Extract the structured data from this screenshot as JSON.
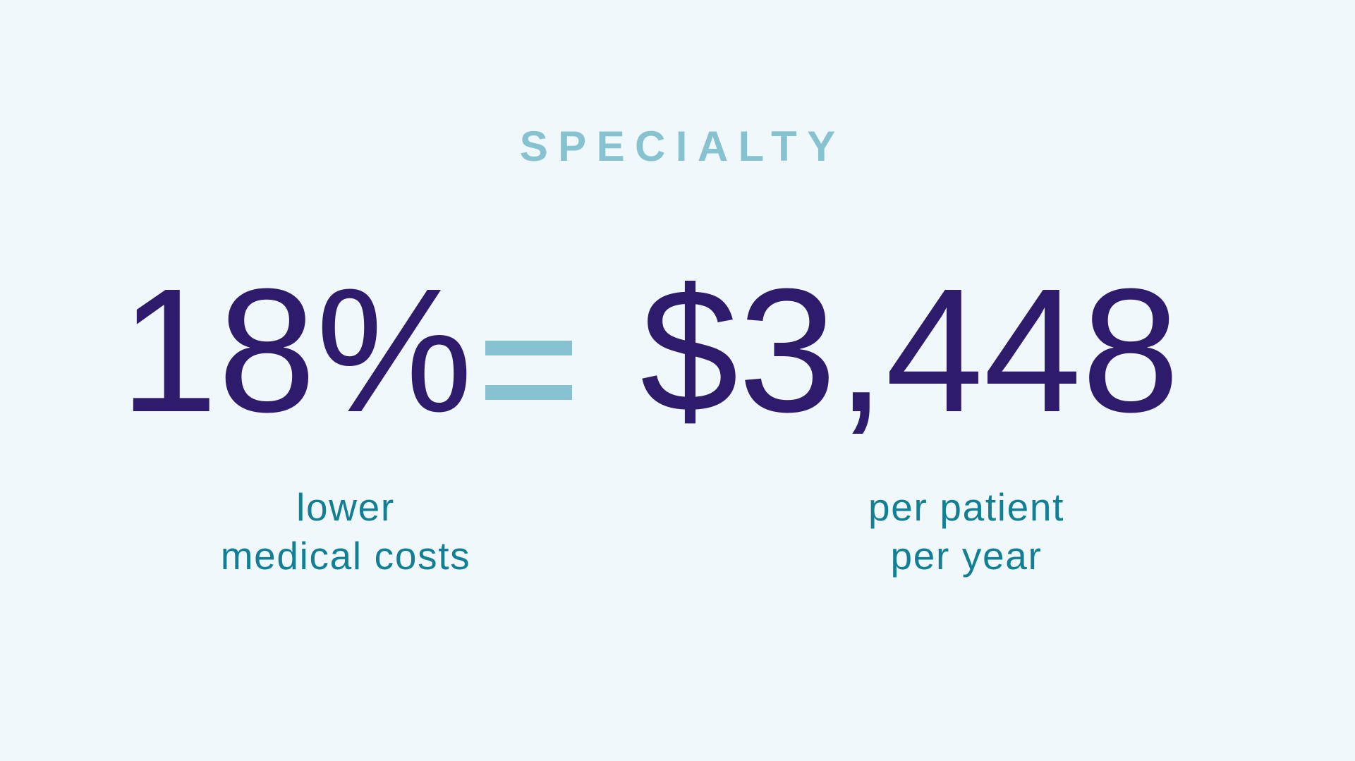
{
  "colors": {
    "background": "#f0f8fb",
    "category": "#86c2cf",
    "stat": "#2e1b6b",
    "equals": "#86c2cf",
    "caption": "#137f94"
  },
  "category": "SPECIALTY",
  "left_stat": {
    "value": "18%",
    "caption_lines": [
      "lower",
      "medical costs"
    ]
  },
  "right_stat": {
    "value": "$3,448",
    "caption_lines": [
      "per patient",
      "per year"
    ]
  }
}
